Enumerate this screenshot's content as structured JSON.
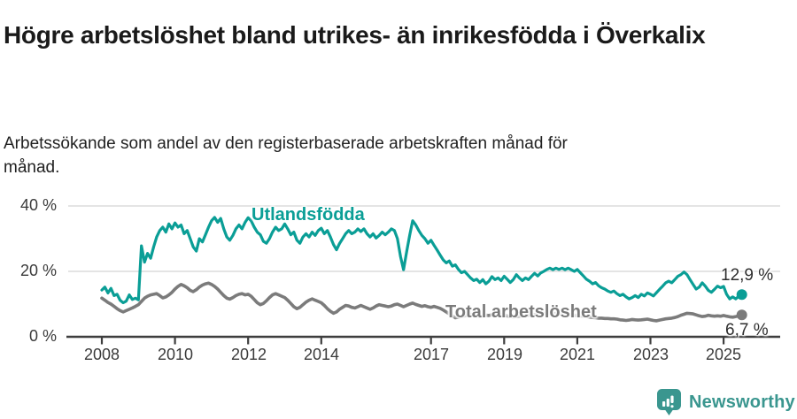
{
  "title": "Högre arbetslöshet bland utrikes- än inrikesfödda i Överkalix",
  "subtitle": "Arbetssökande som andel av den registerbaserade arbetskraften månad för månad.",
  "branding": {
    "name": "Newsworthy",
    "logo_icon": "bar-chart-speech-bubble-icon",
    "color": "#3a968f"
  },
  "colors": {
    "foreign_born_line": "#0a9e96",
    "total_line": "#7b7b7b",
    "gridline": "#dcdcdc",
    "axis": "#3e3e3e",
    "tick_text": "#3a3a3a"
  },
  "chart_data": {
    "type": "line",
    "title": "Högre arbetslöshet bland utrikes- än inrikesfödda i Överkalix",
    "subtitle": "Arbetssökande som andel av den registerbaserade arbetskraften månad för månad.",
    "unit": "%",
    "grid": "horizontal-only",
    "legend": "inline-labels",
    "x_axis": {
      "ticks": [
        "2008",
        "2010",
        "2012",
        "2014",
        "2017",
        "2019",
        "2021",
        "2023",
        "2025"
      ],
      "range": [
        2007.0,
        2026.5
      ]
    },
    "y_axis": {
      "ticks": [
        "40 %",
        "20 %",
        "0 %"
      ],
      "range": [
        0,
        44
      ]
    },
    "x_start": 2008.0,
    "x_step": 0.0833333,
    "series": [
      {
        "name": "Total arbetslöshet",
        "color": "#7b7b7b",
        "end_label": "6,7 %",
        "end_value": 6.7,
        "values": [
          11.8,
          11.2,
          10.5,
          10.0,
          9.3,
          8.6,
          8.0,
          7.6,
          8.0,
          8.4,
          8.8,
          9.3,
          9.8,
          10.8,
          11.8,
          12.4,
          12.8,
          13.0,
          13.2,
          12.6,
          11.9,
          12.2,
          12.8,
          13.6,
          14.6,
          15.4,
          16.0,
          15.6,
          15.0,
          14.2,
          13.8,
          14.4,
          15.2,
          15.8,
          16.2,
          16.4,
          16.0,
          15.4,
          14.6,
          13.6,
          12.6,
          11.8,
          11.5,
          12.0,
          12.6,
          13.0,
          13.2,
          12.8,
          13.0,
          12.4,
          11.4,
          10.4,
          9.8,
          10.2,
          11.0,
          12.0,
          12.8,
          13.2,
          12.8,
          12.4,
          12.0,
          11.2,
          10.2,
          9.2,
          8.6,
          9.0,
          9.8,
          10.6,
          11.2,
          11.6,
          11.2,
          10.8,
          10.4,
          9.6,
          8.6,
          7.8,
          7.2,
          7.6,
          8.4,
          9.0,
          9.6,
          9.4,
          9.0,
          8.8,
          9.2,
          9.6,
          9.2,
          8.8,
          8.4,
          8.8,
          9.4,
          9.8,
          9.6,
          9.4,
          9.2,
          9.4,
          9.8,
          10.0,
          9.6,
          9.2,
          9.6,
          10.0,
          10.3,
          9.9,
          9.6,
          9.3,
          9.5,
          9.2,
          9.0,
          9.3,
          9.0,
          8.7,
          8.2,
          7.6,
          7.0,
          6.4,
          5.8,
          6.0,
          6.2,
          6.4,
          6.6,
          6.8,
          6.6,
          6.4,
          6.2,
          6.4,
          6.6,
          6.5,
          6.7,
          6.8,
          6.7,
          6.8,
          6.6,
          6.4,
          6.2,
          6.1,
          6.2,
          6.3,
          6.4,
          6.5,
          6.6,
          6.7,
          6.8,
          6.9,
          7.0,
          7.1,
          7.2,
          7.3,
          7.2,
          7.1,
          7.0,
          6.9,
          6.8,
          6.8,
          6.7,
          6.6,
          6.5,
          6.4,
          6.3,
          6.2,
          6.0,
          5.9,
          5.8,
          5.7,
          5.7,
          5.6,
          5.6,
          5.5,
          5.5,
          5.4,
          5.2,
          5.1,
          5.0,
          5.1,
          5.3,
          5.2,
          5.1,
          5.2,
          5.3,
          5.4,
          5.2,
          5.0,
          4.9,
          5.1,
          5.3,
          5.5,
          5.6,
          5.7,
          5.9,
          6.2,
          6.6,
          6.9,
          7.2,
          7.1,
          7.0,
          6.7,
          6.4,
          6.2,
          6.3,
          6.6,
          6.4,
          6.3,
          6.4,
          6.3,
          6.5,
          6.3,
          6.1,
          6.0,
          6.2,
          6.4,
          6.7
        ]
      },
      {
        "name": "Utlandsfödda",
        "color": "#0a9e96",
        "end_label": "12,9 %",
        "end_value": 12.9,
        "values": [
          14.3,
          15.2,
          13.4,
          14.8,
          12.6,
          13.0,
          11.2,
          10.4,
          10.9,
          12.8,
          11.4,
          11.8,
          11.3,
          27.8,
          22.8,
          25.5,
          24.0,
          27.5,
          30.5,
          32.5,
          33.5,
          32.0,
          34.5,
          33.0,
          34.8,
          33.5,
          34.2,
          31.5,
          32.5,
          30.0,
          27.5,
          26.2,
          30.0,
          29.0,
          31.2,
          33.5,
          35.5,
          36.5,
          35.0,
          36.2,
          33.0,
          30.5,
          29.5,
          31.0,
          33.0,
          34.2,
          33.0,
          35.0,
          36.4,
          35.5,
          33.5,
          32.0,
          31.2,
          29.2,
          28.6,
          30.0,
          32.0,
          33.5,
          32.5,
          33.0,
          34.5,
          33.0,
          31.2,
          32.0,
          29.5,
          28.6,
          30.5,
          31.5,
          30.5,
          32.0,
          31.0,
          32.5,
          33.2,
          31.5,
          32.5,
          30.5,
          28.2,
          26.6,
          28.5,
          30.0,
          31.5,
          32.5,
          31.5,
          32.0,
          33.0,
          32.2,
          33.0,
          31.5,
          30.5,
          31.5,
          30.2,
          31.0,
          32.0,
          31.2,
          32.0,
          33.0,
          32.5,
          30.0,
          24.5,
          20.5,
          26.0,
          31.0,
          35.5,
          34.2,
          32.5,
          31.0,
          30.0,
          28.6,
          29.5,
          28.0,
          26.5,
          25.0,
          23.5,
          22.6,
          23.2,
          21.6,
          22.0,
          20.6,
          19.6,
          20.0,
          19.0,
          18.0,
          17.2,
          17.6,
          16.6,
          17.5,
          16.2,
          17.0,
          18.4,
          17.5,
          18.0,
          17.2,
          18.5,
          17.6,
          16.6,
          17.5,
          19.0,
          18.0,
          17.2,
          18.0,
          17.5,
          18.5,
          19.4,
          18.6,
          19.5,
          20.0,
          20.6,
          21.0,
          20.5,
          21.0,
          20.6,
          21.0,
          20.5,
          21.0,
          20.5,
          20.0,
          20.6,
          19.6,
          18.6,
          17.6,
          17.0,
          16.2,
          16.6,
          15.6,
          15.0,
          14.6,
          14.0,
          13.6,
          14.0,
          13.2,
          12.6,
          13.0,
          12.2,
          11.6,
          12.0,
          12.6,
          12.0,
          13.0,
          12.5,
          13.4,
          13.0,
          12.5,
          13.5,
          14.5,
          15.5,
          16.5,
          17.0,
          16.5,
          17.5,
          18.5,
          19.0,
          19.8,
          19.0,
          17.5,
          16.0,
          14.6,
          15.2,
          16.5,
          15.5,
          14.2,
          13.6,
          14.5,
          15.5,
          15.0,
          15.4,
          13.0,
          11.6,
          12.2,
          11.6,
          12.4,
          12.9
        ]
      }
    ]
  }
}
